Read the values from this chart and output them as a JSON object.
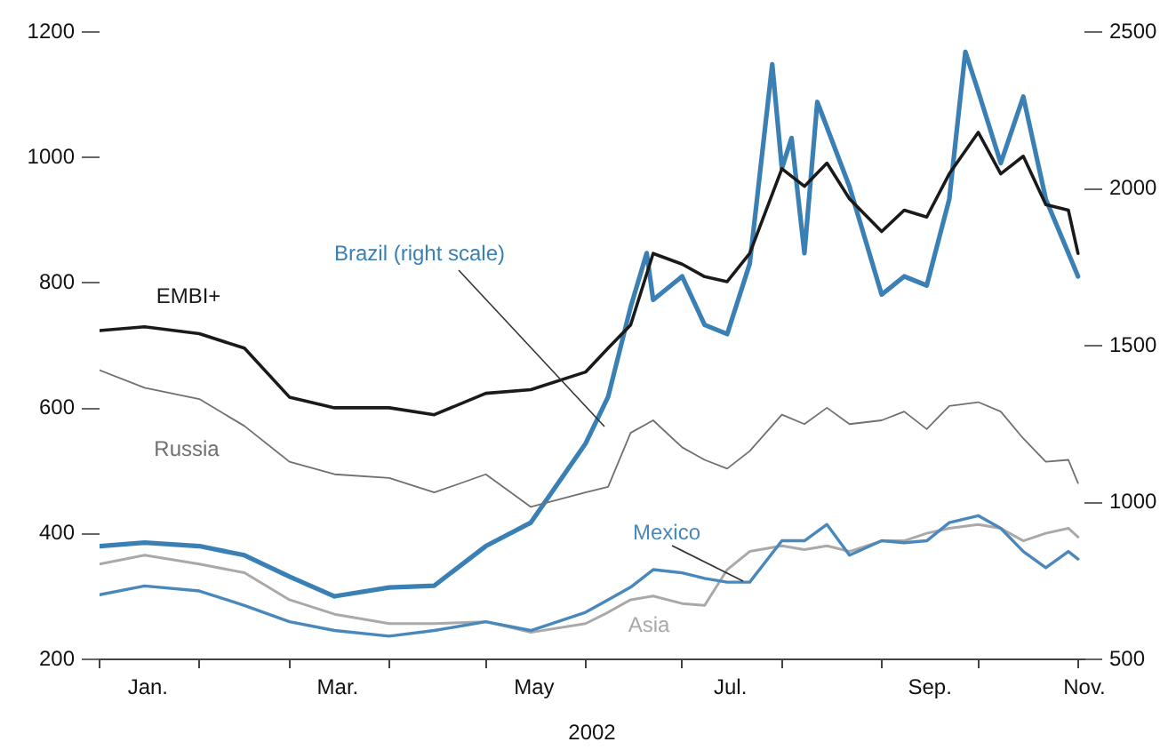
{
  "chart_data": {
    "type": "line",
    "xlabel": "2002",
    "marker": "none",
    "x": [
      "2002-01-01",
      "2002-01-15",
      "2002-02-01",
      "2002-02-15",
      "2002-03-01",
      "2002-03-15",
      "2002-04-01",
      "2002-04-15",
      "2002-05-01",
      "2002-05-15",
      "2002-06-01",
      "2002-06-08",
      "2002-06-15",
      "2002-06-22",
      "2002-07-01",
      "2002-07-08",
      "2002-07-15",
      "2002-07-22",
      "2002-08-01",
      "2002-08-08",
      "2002-08-15",
      "2002-08-22",
      "2002-09-01",
      "2002-09-08",
      "2002-09-15",
      "2002-09-22",
      "2002-10-01",
      "2002-10-08",
      "2002-10-15",
      "2002-10-22",
      "2002-10-29",
      "2002-11-01"
    ],
    "series": [
      {
        "name": "EMBI+",
        "color": "#1a1a1a",
        "values": [
          724,
          730,
          719,
          696,
          618,
          601,
          601,
          590,
          624,
          630,
          658,
          696,
          733,
          847,
          830,
          810,
          802,
          847,
          982,
          954,
          991,
          934,
          882,
          916,
          905,
          974,
          1040,
          974,
          1002,
          925,
          916,
          847
        ]
      },
      {
        "name": "Russia",
        "color": "#707070",
        "values": [
          661,
          633,
          615,
          572,
          515,
          495,
          489,
          466,
          495,
          443,
          466,
          475,
          561,
          581,
          538,
          518,
          504,
          532,
          590,
          575,
          601,
          575,
          581,
          595,
          567,
          604,
          610,
          595,
          552,
          515,
          518,
          481
        ]
      },
      {
        "name": "Brazil (right scale)",
        "color": "#3b80b4",
        "axis": "y2",
        "x": [
          "2002-01-01",
          "2002-01-15",
          "2002-02-01",
          "2002-02-15",
          "2002-03-01",
          "2002-03-15",
          "2002-04-01",
          "2002-04-15",
          "2002-05-01",
          "2002-05-15",
          "2002-06-01",
          "2002-06-08",
          "2002-06-15",
          "2002-06-20",
          "2002-06-22",
          "2002-07-01",
          "2002-07-08",
          "2002-07-15",
          "2002-07-22",
          "2002-07-29",
          "2002-08-01",
          "2002-08-04",
          "2002-08-08",
          "2002-08-12",
          "2002-08-22",
          "2002-09-01",
          "2002-09-08",
          "2002-09-15",
          "2002-09-22",
          "2002-09-27",
          "2002-10-01",
          "2002-10-08",
          "2002-10-15",
          "2002-10-22",
          "2002-10-29",
          "2002-11-01"
        ],
        "values": [
          861,
          872,
          861,
          832,
          764,
          701,
          729,
          735,
          861,
          936,
          1188,
          1337,
          1623,
          1795,
          1646,
          1721,
          1566,
          1537,
          1761,
          2397,
          2065,
          2162,
          1795,
          2277,
          2007,
          1663,
          1721,
          1692,
          1967,
          2437,
          2311,
          2082,
          2294,
          1967,
          1795,
          1721
        ]
      },
      {
        "name": "Mexico",
        "color": "#4a88bc",
        "values": [
          303,
          317,
          309,
          286,
          260,
          246,
          237,
          246,
          260,
          246,
          275,
          295,
          315,
          343,
          338,
          329,
          323,
          323,
          389,
          389,
          415,
          366,
          389,
          386,
          389,
          418,
          429,
          409,
          372,
          346,
          372,
          360
        ]
      },
      {
        "name": "Asia",
        "color": "#a9a9a9",
        "values": [
          352,
          366,
          352,
          338,
          295,
          272,
          257,
          257,
          260,
          243,
          257,
          275,
          295,
          301,
          289,
          286,
          343,
          372,
          381,
          375,
          381,
          372,
          389,
          389,
          401,
          409,
          415,
          409,
          389,
          401,
          409,
          395
        ]
      }
    ],
    "xlim": [
      "2002-01-01",
      "2002-11-03"
    ],
    "xticks": [
      {
        "value": "2002-01-01",
        "label": null
      },
      {
        "value": "2002-01-16",
        "label": "Jan."
      },
      {
        "value": "2002-02-01",
        "label": null
      },
      {
        "value": "2002-03-01",
        "label": null
      },
      {
        "value": "2002-03-16",
        "label": "Mar."
      },
      {
        "value": "2002-04-01",
        "label": null
      },
      {
        "value": "2002-05-01",
        "label": null
      },
      {
        "value": "2002-05-16",
        "label": "May"
      },
      {
        "value": "2002-06-01",
        "label": null
      },
      {
        "value": "2002-07-01",
        "label": null
      },
      {
        "value": "2002-07-16",
        "label": "Jul."
      },
      {
        "value": "2002-08-01",
        "label": null
      },
      {
        "value": "2002-09-01",
        "label": null
      },
      {
        "value": "2002-09-16",
        "label": "Sep."
      },
      {
        "value": "2002-10-01",
        "label": null
      },
      {
        "value": "2002-11-01",
        "label": null
      },
      {
        "value": "2002-11-03",
        "label": "Nov."
      }
    ],
    "ylim": [
      200,
      1200
    ],
    "yticks": [
      200,
      400,
      600,
      800,
      1000,
      1200
    ],
    "y2lim": [
      500,
      2500
    ],
    "y2ticks": [
      500,
      1000,
      1500,
      2000,
      2500
    ],
    "legend": false
  }
}
